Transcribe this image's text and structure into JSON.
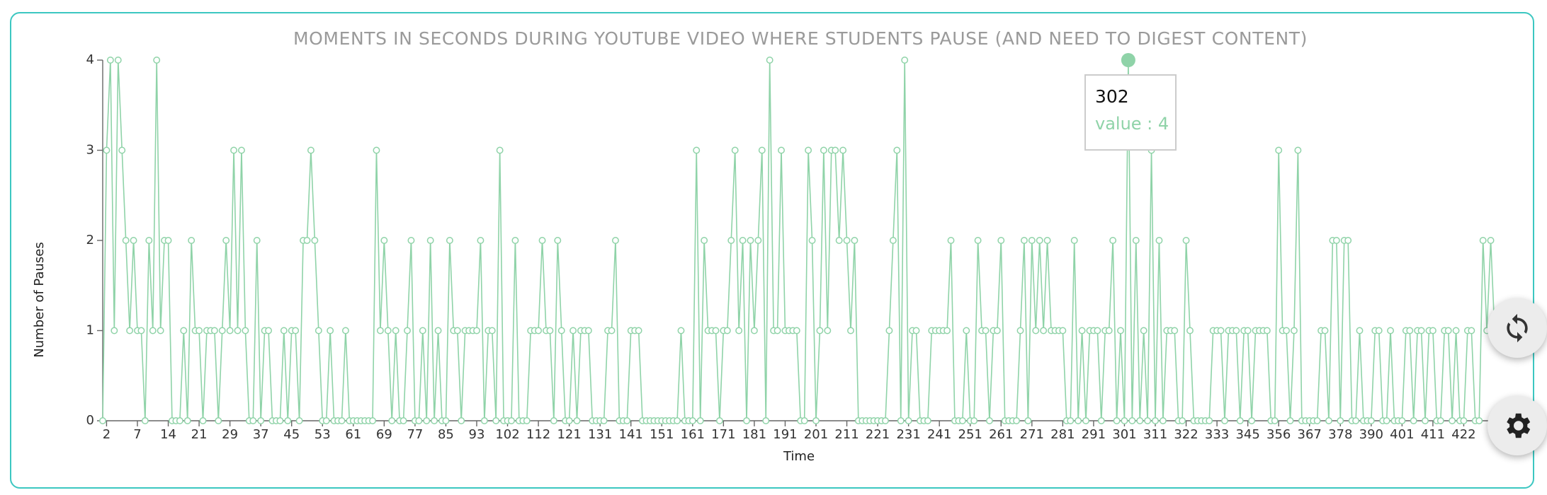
{
  "chart_data": {
    "type": "line",
    "title": "MOMENTS IN SECONDS DURING YOUTUBE VIDEO WHERE STUDENTS PAUSE (AND NEED TO DIGEST CONTENT)",
    "x_label": "Time",
    "y_label": "Number of Pauses",
    "color": "#8fd3a8",
    "ylim": [
      0,
      4
    ],
    "yticks": [
      0,
      1,
      2,
      3,
      4
    ],
    "grid": false,
    "categories": [
      null,
      "2",
      null,
      null,
      null,
      null,
      null,
      null,
      null,
      "7",
      null,
      null,
      null,
      null,
      null,
      null,
      null,
      "14",
      null,
      null,
      null,
      null,
      null,
      null,
      null,
      "21",
      null,
      null,
      null,
      null,
      null,
      null,
      null,
      "29",
      null,
      null,
      null,
      null,
      null,
      null,
      null,
      "37",
      null,
      null,
      null,
      null,
      null,
      null,
      null,
      "45",
      null,
      null,
      null,
      null,
      null,
      null,
      null,
      "53",
      null,
      null,
      null,
      null,
      null,
      null,
      null,
      "61",
      null,
      null,
      null,
      null,
      null,
      null,
      null,
      "69",
      null,
      null,
      null,
      null,
      null,
      null,
      null,
      "77",
      null,
      null,
      null,
      null,
      null,
      null,
      null,
      "85",
      null,
      null,
      null,
      null,
      null,
      null,
      null,
      "93",
      null,
      null,
      null,
      null,
      null,
      null,
      null,
      "102",
      null,
      null,
      null,
      null,
      null,
      null,
      null,
      "112",
      null,
      null,
      null,
      null,
      null,
      null,
      null,
      "121",
      null,
      null,
      null,
      null,
      null,
      null,
      null,
      "131",
      null,
      null,
      null,
      null,
      null,
      null,
      null,
      "141",
      null,
      null,
      null,
      null,
      null,
      null,
      null,
      "151",
      null,
      null,
      null,
      null,
      null,
      null,
      null,
      "161",
      null,
      null,
      null,
      null,
      null,
      null,
      null,
      "171",
      null,
      null,
      null,
      null,
      null,
      null,
      null,
      "181",
      null,
      null,
      null,
      null,
      null,
      null,
      null,
      "191",
      null,
      null,
      null,
      null,
      null,
      null,
      null,
      "201",
      null,
      null,
      null,
      null,
      null,
      null,
      null,
      "211",
      null,
      null,
      null,
      null,
      null,
      null,
      null,
      "221",
      null,
      null,
      null,
      null,
      null,
      null,
      null,
      "231",
      null,
      null,
      null,
      null,
      null,
      null,
      null,
      "241",
      null,
      null,
      null,
      null,
      null,
      null,
      null,
      "251",
      null,
      null,
      null,
      null,
      null,
      null,
      null,
      "261",
      null,
      null,
      null,
      null,
      null,
      null,
      null,
      "271",
      null,
      null,
      null,
      null,
      null,
      null,
      null,
      "281",
      null,
      null,
      null,
      null,
      null,
      null,
      null,
      "291",
      null,
      null,
      null,
      null,
      null,
      null,
      null,
      "301",
      null,
      null,
      null,
      null,
      null,
      null,
      null,
      "311",
      null,
      null,
      null,
      null,
      null,
      null,
      null,
      "322",
      null,
      null,
      null,
      null,
      null,
      null,
      null,
      "333",
      null,
      null,
      null,
      null,
      null,
      null,
      null,
      "345",
      null,
      null,
      null,
      null,
      null,
      null,
      null,
      "356",
      null,
      null,
      null,
      null,
      null,
      null,
      null,
      "367",
      null,
      null,
      null,
      null,
      null,
      null,
      null,
      "378",
      null,
      null,
      null,
      null,
      null,
      null,
      null,
      "390",
      null,
      null,
      null,
      null,
      null,
      null,
      null,
      "401",
      null,
      null,
      null,
      null,
      null,
      null,
      null,
      "411",
      null,
      null,
      null,
      null,
      null,
      null,
      null,
      "422",
      null,
      null,
      null,
      null,
      null,
      null,
      null,
      null
    ],
    "values": [
      0,
      3,
      4,
      1,
      4,
      3,
      2,
      1,
      2,
      1,
      1,
      0,
      2,
      1,
      4,
      1,
      2,
      2,
      0,
      0,
      0,
      1,
      0,
      2,
      1,
      1,
      0,
      1,
      1,
      1,
      0,
      1,
      2,
      1,
      3,
      1,
      3,
      1,
      0,
      0,
      2,
      0,
      1,
      1,
      0,
      0,
      0,
      1,
      0,
      1,
      1,
      0,
      2,
      2,
      3,
      2,
      1,
      0,
      0,
      1,
      0,
      0,
      0,
      1,
      0,
      0,
      0,
      0,
      0,
      0,
      0,
      3,
      1,
      2,
      1,
      0,
      1,
      0,
      0,
      1,
      2,
      0,
      0,
      1,
      0,
      2,
      0,
      1,
      0,
      0,
      2,
      1,
      1,
      0,
      1,
      1,
      1,
      1,
      2,
      0,
      1,
      1,
      0,
      3,
      0,
      0,
      0,
      2,
      0,
      0,
      0,
      1,
      1,
      1,
      2,
      1,
      1,
      0,
      2,
      1,
      0,
      0,
      1,
      0,
      1,
      1,
      1,
      0,
      0,
      0,
      0,
      1,
      1,
      2,
      0,
      0,
      0,
      1,
      1,
      1,
      0,
      0,
      0,
      0,
      0,
      0,
      0,
      0,
      0,
      0,
      1,
      0,
      0,
      0,
      3,
      0,
      2,
      1,
      1,
      1,
      0,
      1,
      1,
      2,
      3,
      1,
      2,
      0,
      2,
      1,
      2,
      3,
      0,
      4,
      1,
      1,
      3,
      1,
      1,
      1,
      1,
      0,
      0,
      3,
      2,
      0,
      1,
      3,
      1,
      3,
      3,
      2,
      3,
      2,
      1,
      2,
      0,
      0,
      0,
      0,
      0,
      0,
      0,
      0,
      1,
      2,
      3,
      0,
      4,
      0,
      1,
      1,
      0,
      0,
      0,
      1,
      1,
      1,
      1,
      1,
      2,
      0,
      0,
      0,
      1,
      0,
      0,
      2,
      1,
      1,
      0,
      1,
      1,
      2,
      0,
      0,
      0,
      0,
      1,
      2,
      0,
      2,
      1,
      2,
      1,
      2,
      1,
      1,
      1,
      1,
      0,
      0,
      2,
      0,
      1,
      0,
      1,
      1,
      1,
      0,
      1,
      1,
      2,
      0,
      1,
      0,
      4,
      0,
      2,
      0,
      1,
      0,
      3,
      0,
      2,
      0,
      1,
      1,
      1,
      0,
      0,
      2,
      1,
      0,
      0,
      0,
      0,
      0,
      1,
      1,
      1,
      0,
      1,
      1,
      1,
      0,
      1,
      1,
      0,
      1,
      1,
      1,
      1,
      0,
      0,
      3,
      1,
      1,
      0,
      1,
      3,
      0,
      0,
      0,
      0,
      0,
      1,
      1,
      0,
      2,
      2,
      0,
      2,
      2,
      0,
      0,
      1,
      0,
      0,
      0,
      1,
      1,
      0,
      0,
      1,
      0,
      0,
      0,
      1,
      1,
      0,
      1,
      1,
      0,
      1,
      1,
      0,
      0,
      1,
      1,
      0,
      1,
      0,
      0,
      1,
      1,
      0,
      0,
      2,
      1,
      2,
      1
    ],
    "tooltip": {
      "title": "302",
      "text": "value : 4"
    }
  }
}
